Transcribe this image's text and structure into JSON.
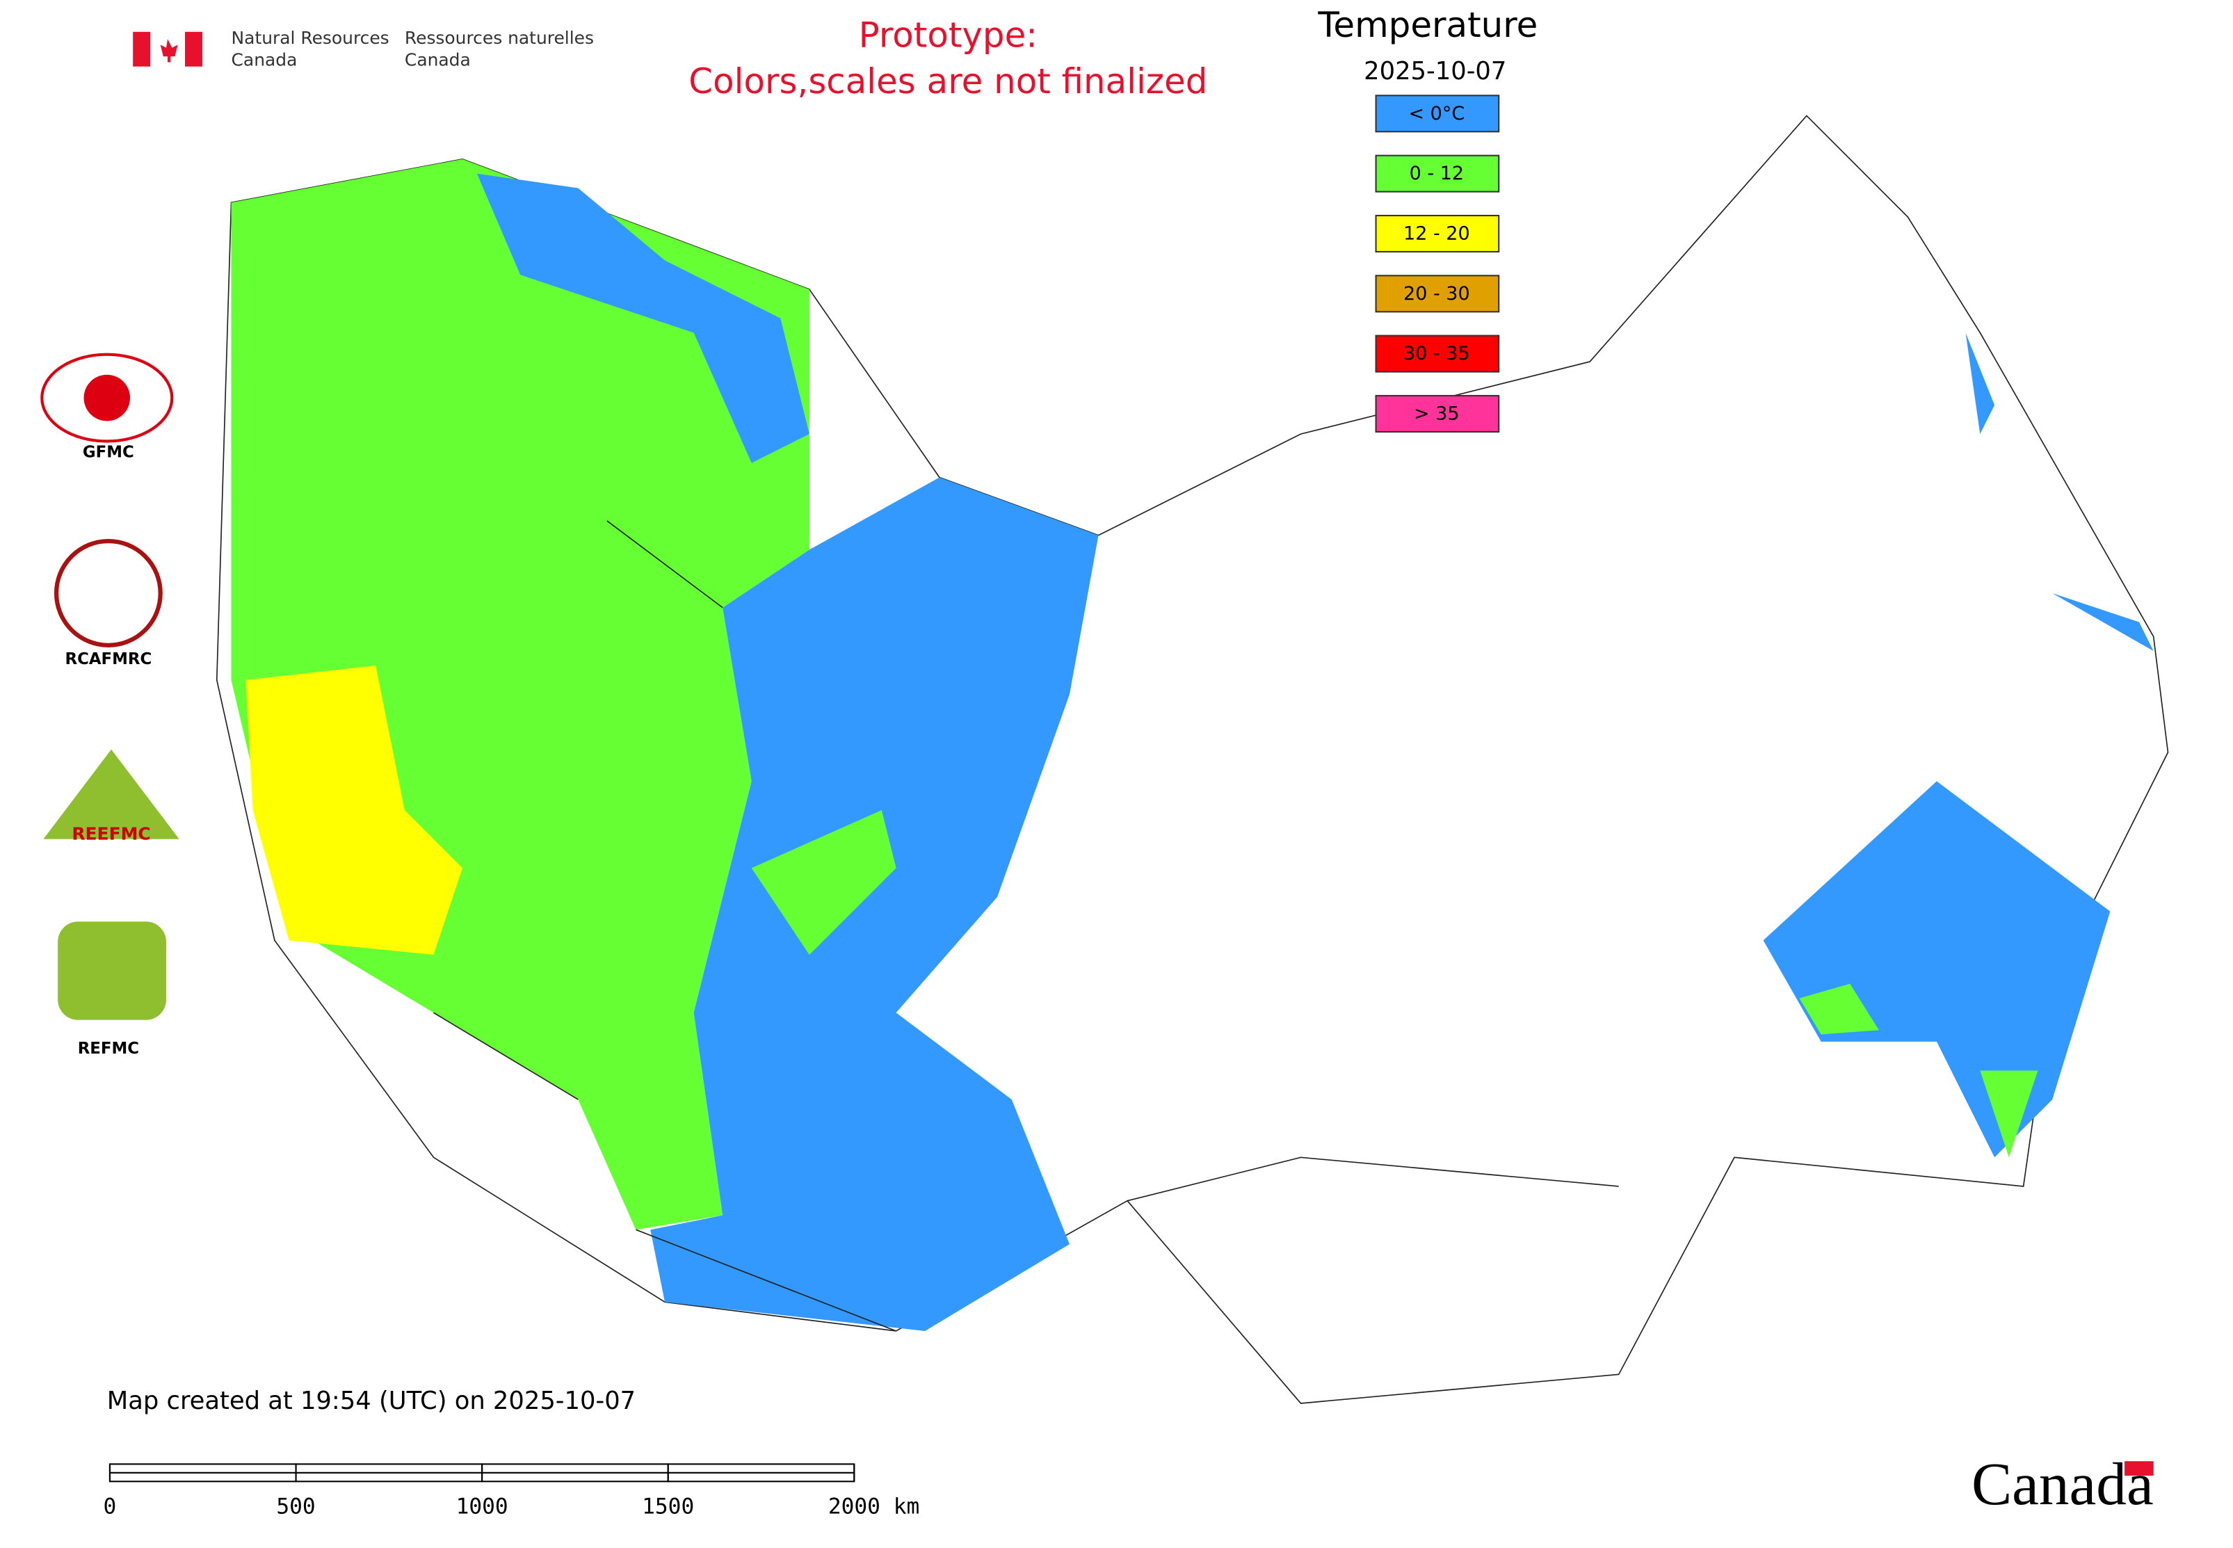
{
  "header": {
    "org_en_1": "Natural Resources",
    "org_en_2": "Canada",
    "org_fr_1": "Ressources naturelles",
    "org_fr_2": "Canada"
  },
  "notice": {
    "line1": "Prototype:",
    "line2": "Colors,scales are not finalized"
  },
  "legend": {
    "title": "Temperature",
    "date": "2025-10-07",
    "items": [
      {
        "label": "< 0°C",
        "color": "#3399ff"
      },
      {
        "label": "0 - 12",
        "color": "#66ff33"
      },
      {
        "label": "12 - 20",
        "color": "#ffff00"
      },
      {
        "label": "20 - 30",
        "color": "#e0a000"
      },
      {
        "label": "30 - 35",
        "color": "#ff0000"
      },
      {
        "label": "> 35",
        "color": "#ff3399"
      }
    ]
  },
  "logos": [
    "GFMC",
    "RCAFMRC",
    "REEFMC",
    "REFMC"
  ],
  "footer": "Map created at 19:54 (UTC) on 2025-10-07",
  "scale_bar": {
    "ticks": [
      0,
      500,
      1000,
      1500,
      {
        "value": 2000,
        "label": "2000 km"
      }
    ]
  },
  "wordmark": "Canada"
}
